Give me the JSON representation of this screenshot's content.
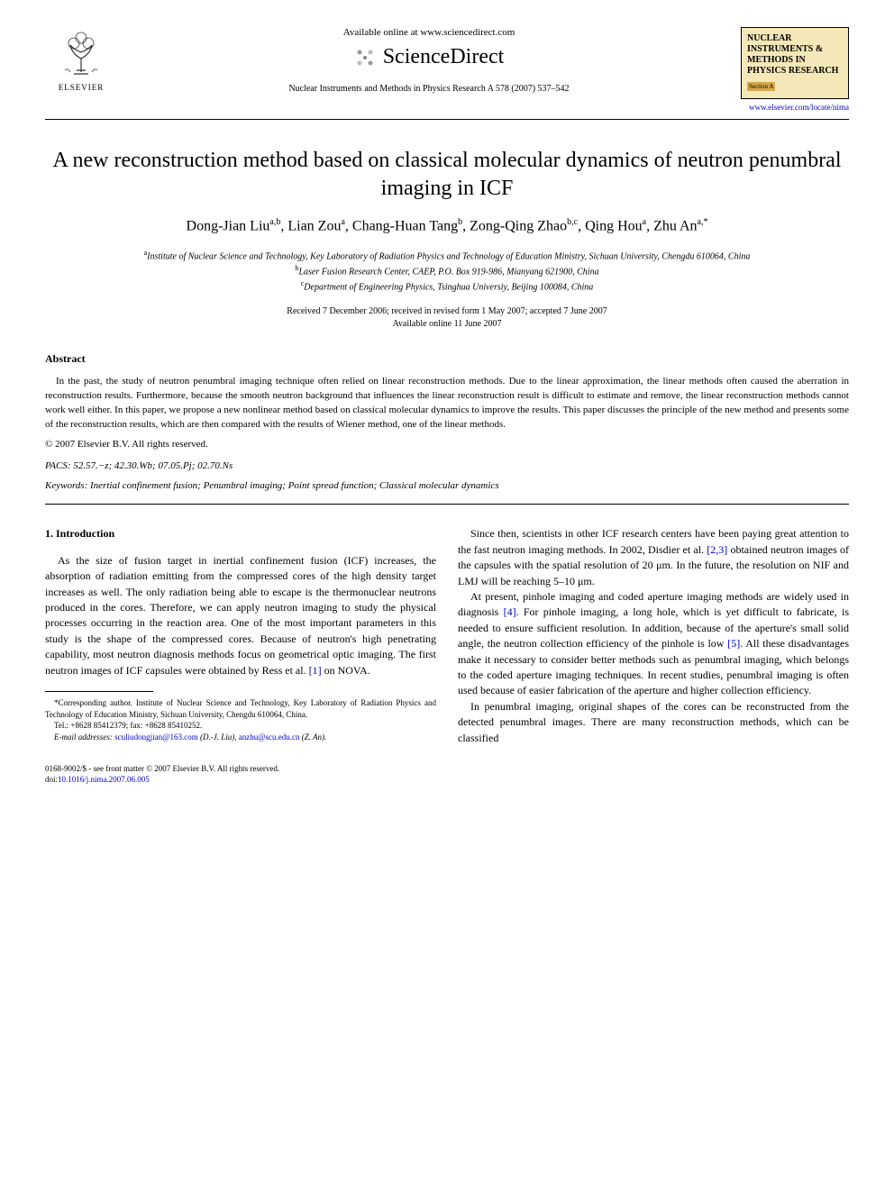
{
  "header": {
    "available_online": "Available online at www.sciencedirect.com",
    "sciencedirect": "ScienceDirect",
    "journal_ref": "Nuclear Instruments and Methods in Physics Research A 578 (2007) 537–542",
    "elsevier": "ELSEVIER",
    "journal_box_lines": "NUCLEAR INSTRUMENTS & METHODS IN PHYSICS RESEARCH",
    "journal_box_section": "Section A",
    "journal_link": "www.elsevier.com/locate/nima"
  },
  "title": "A new reconstruction method based on classical molecular dynamics of neutron penumbral imaging in ICF",
  "authors_html": "Dong-Jian Liu<sup>a,b</sup>, Lian Zou<sup>a</sup>, Chang-Huan Tang<sup>b</sup>, Zong-Qing Zhao<sup>b,c</sup>, Qing Hou<sup>a</sup>, Zhu An<sup>a,*</sup>",
  "affiliations": {
    "a": "Institute of Nuclear Science and Technology, Key Laboratory of Radiation Physics and Technology of Education Ministry, Sichuan University, Chengdu 610064, China",
    "b": "Laser Fusion Research Center, CAEP, P.O. Box 919-986, Mianyang 621900, China",
    "c": "Department of Engineering Physics, Tsinghua Universiy, Beijing 100084, China"
  },
  "dates": {
    "received": "Received 7 December 2006; received in revised form 1 May 2007; accepted 7 June 2007",
    "available": "Available online 11 June 2007"
  },
  "abstract": {
    "heading": "Abstract",
    "text": "In the past, the study of neutron penumbral imaging technique often relied on linear reconstruction methods. Due to the linear approximation, the linear methods often caused the aberration in reconstruction results. Furthermore, because the smooth neutron background that influences the linear reconstruction result is difficult to estimate and remove, the linear reconstruction methods cannot work well either. In this paper, we propose a new nonlinear method based on classical molecular dynamics to improve the results. This paper discusses the principle of the new method and presents some of the reconstruction results, which are then compared with the results of Wiener method, one of the linear methods.",
    "copyright": "© 2007 Elsevier B.V. All rights reserved."
  },
  "pacs": "PACS: 52.57.−z; 42.30.Wb; 07.05.Pj; 02.70.Ns",
  "keywords": "Keywords: Inertial confinement fusion; Penumbral imaging; Point spread function; Classical molecular dynamics",
  "body": {
    "heading": "1. Introduction",
    "col1_p1": "As the size of fusion target in inertial confinement fusion (ICF) increases, the absorption of radiation emitting from the compressed cores of the high density target increases as well. The only radiation being able to escape is the thermonuclear neutrons produced in the cores. Therefore, we can apply neutron imaging to study the physical processes occurring in the reaction area. One of the most important parameters in this study is the shape of the compressed cores. Because of neutron's high penetrating capability, most neutron diagnosis methods focus on geometrical optic imaging. The first neutron images of ICF capsules were obtained by Ress et al. [1] on NOVA.",
    "col2_p1": "Since then, scientists in other ICF research centers have been paying great attention to the fast neutron imaging methods. In 2002, Disdier et al. [2,3] obtained neutron images of the capsules with the spatial resolution of 20 μm. In the future, the resolution on NIF and LMJ will be reaching 5–10 μm.",
    "col2_p2": "At present, pinhole imaging and coded aperture imaging methods are widely used in diagnosis [4]. For pinhole imaging, a long hole, which is yet difficult to fabricate, is needed to ensure sufficient resolution. In addition, because of the aperture's small solid angle, the neutron collection efficiency of the pinhole is low [5]. All these disadvantages make it necessary to consider better methods such as penumbral imaging, which belongs to the coded aperture imaging techniques. In recent studies, penumbral imaging is often used because of easier fabrication of the aperture and higher collection efficiency.",
    "col2_p3": "In penumbral imaging, original shapes of the cores can be reconstructed from the detected penumbral images. There are many reconstruction methods, which can be classified"
  },
  "footnote": {
    "corr": "*Corresponding author. Institute of Nuclear Science and Technology, Key Laboratory of Radiation Physics and Technology of Education Ministry, Sichuan University, Chengdu 610064, China.",
    "tel": "Tel.: +8628 85412379; fax: +8628 85410252.",
    "email_label": "E-mail addresses:",
    "email1": "sculiudongjian@163.com",
    "email1_who": "(D.-J. Liu),",
    "email2": "anzhu@scu.edu.cn",
    "email2_who": "(Z. An)."
  },
  "bottom": {
    "issn": "0168-9002/$ - see front matter © 2007 Elsevier B.V. All rights reserved.",
    "doi_label": "doi:",
    "doi": "10.1016/j.nima.2007.06.005"
  },
  "colors": {
    "link": "#0000cc",
    "journal_box_bg": "#f4e8b8",
    "journal_section_bg": "#d4a94a"
  }
}
